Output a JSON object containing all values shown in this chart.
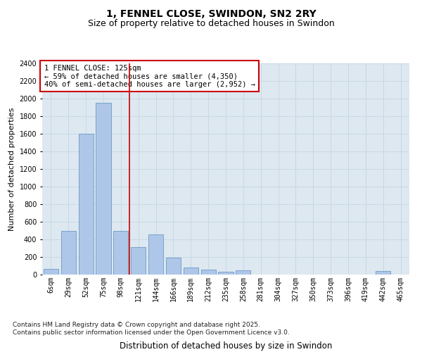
{
  "title": "1, FENNEL CLOSE, SWINDON, SN2 2RY",
  "subtitle": "Size of property relative to detached houses in Swindon",
  "xlabel": "Distribution of detached houses by size in Swindon",
  "ylabel": "Number of detached properties",
  "categories": [
    "6sqm",
    "29sqm",
    "52sqm",
    "75sqm",
    "98sqm",
    "121sqm",
    "144sqm",
    "166sqm",
    "189sqm",
    "212sqm",
    "235sqm",
    "258sqm",
    "281sqm",
    "304sqm",
    "327sqm",
    "350sqm",
    "373sqm",
    "396sqm",
    "419sqm",
    "442sqm",
    "465sqm"
  ],
  "values": [
    65,
    500,
    1600,
    1950,
    500,
    310,
    460,
    195,
    80,
    55,
    30,
    50,
    0,
    0,
    0,
    0,
    0,
    0,
    0,
    40,
    0
  ],
  "bar_color": "#aec6e8",
  "bar_edge_color": "#5a8fc0",
  "grid_color": "#c8d8e8",
  "background_color": "#dde8f0",
  "vline_x": 4.5,
  "vline_color": "#cc0000",
  "annotation_text": "1 FENNEL CLOSE: 125sqm\n← 59% of detached houses are smaller (4,350)\n40% of semi-detached houses are larger (2,952) →",
  "annotation_box_color": "white",
  "annotation_box_edgecolor": "#cc0000",
  "ylim": [
    0,
    2400
  ],
  "yticks": [
    0,
    200,
    400,
    600,
    800,
    1000,
    1200,
    1400,
    1600,
    1800,
    2000,
    2200,
    2400
  ],
  "footer": "Contains HM Land Registry data © Crown copyright and database right 2025.\nContains public sector information licensed under the Open Government Licence v3.0.",
  "title_fontsize": 10,
  "subtitle_fontsize": 9,
  "xlabel_fontsize": 8.5,
  "ylabel_fontsize": 8,
  "tick_fontsize": 7,
  "annotation_fontsize": 7.5,
  "footer_fontsize": 6.5
}
